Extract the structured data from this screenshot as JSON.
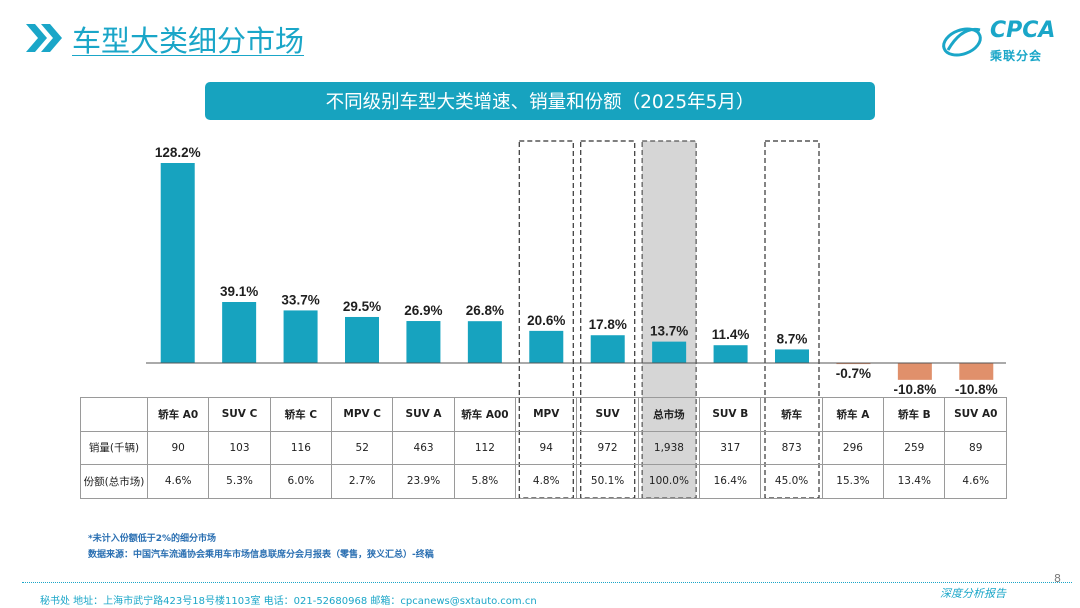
{
  "header": {
    "title": "车型大类细分市场",
    "logo_text": "CPCA",
    "logo_subtitle": "乘联分会"
  },
  "chart_title": "不同级别车型大类增速、销量和份额（2025年5月）",
  "colors": {
    "accent": "#1aa6c8",
    "bar_positive": "#17a3bf",
    "bar_negative": "#e0906b",
    "highlight_fill": "#d6d6d6"
  },
  "chart_data": {
    "type": "bar",
    "categories": [
      "轿车 A0",
      "SUV C",
      "轿车 C",
      "MPV C",
      "SUV A",
      "轿车 A00",
      "MPV",
      "SUV",
      "总市场",
      "SUV B",
      "轿车",
      "轿车 A",
      "轿车 B",
      "SUV A0"
    ],
    "values": [
      128.2,
      39.1,
      33.7,
      29.5,
      26.9,
      26.8,
      20.6,
      17.8,
      13.7,
      11.4,
      8.7,
      -0.7,
      -10.8,
      -10.8
    ],
    "value_labels": [
      "128.2%",
      "39.1%",
      "33.7%",
      "29.5%",
      "26.9%",
      "26.8%",
      "20.6%",
      "17.8%",
      "13.7%",
      "11.4%",
      "8.7%",
      "-0.7%",
      "-10.8%",
      "-10.8%"
    ],
    "dashed_boxes": [
      "MPV",
      "SUV",
      "轿车"
    ],
    "shaded_box": "总市场",
    "title": "不同级别车型大类增速、销量和份额（2025年5月）",
    "xlabel": "",
    "ylabel": ""
  },
  "table": {
    "rows": [
      {
        "label": "销量(千辆)",
        "values": [
          "90",
          "103",
          "116",
          "52",
          "463",
          "112",
          "94",
          "972",
          "1,938",
          "317",
          "873",
          "296",
          "259",
          "89"
        ]
      },
      {
        "label": "份额(总市场)",
        "values": [
          "4.6%",
          "5.3%",
          "6.0%",
          "2.7%",
          "23.9%",
          "5.8%",
          "4.8%",
          "50.1%",
          "100.0%",
          "16.4%",
          "45.0%",
          "15.3%",
          "13.4%",
          "4.6%"
        ]
      }
    ]
  },
  "notes": {
    "note1": "*未计入份额低于2%的细分市场",
    "note2": "数据来源：中国汽车流通协会乘用车市场信息联席分会月报表（零售，狭义汇总）-终稿"
  },
  "footer": {
    "contact": "秘书处   地址：上海市武宁路423号18号楼1103室   电话：021-52680968   邮箱：cpcanews@sxtauto.com.cn",
    "report_label": "深度分析报告",
    "page_number": "8"
  }
}
